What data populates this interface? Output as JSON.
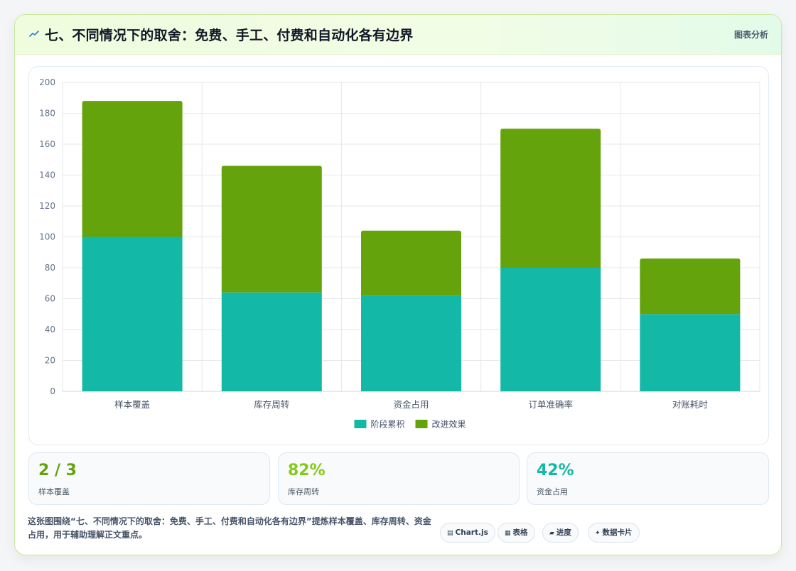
{
  "header": {
    "icon": "chart-line-icon",
    "title": "七、不同情况下的取舍：免费、手工、付费和自动化各有边界",
    "tag": "图表分析"
  },
  "chart_data": {
    "type": "bar",
    "stacked": true,
    "categories": [
      "样本覆盖",
      "库存周转",
      "资金占用",
      "订单准确率",
      "对账耗时"
    ],
    "series": [
      {
        "name": "阶段累积",
        "color": "#14b8a6",
        "values": [
          100,
          64,
          62,
          80,
          50
        ]
      },
      {
        "name": "改进效果",
        "color": "#65a30d",
        "values": [
          88,
          82,
          42,
          90,
          36
        ]
      }
    ],
    "ylim": [
      0,
      200
    ],
    "yticks": [
      0,
      20,
      40,
      60,
      80,
      100,
      120,
      140,
      160,
      180,
      200
    ],
    "grid": true,
    "legend": "bottom"
  },
  "stats": [
    {
      "value": "2 / 3",
      "label": "样本覆盖",
      "color": "#65a30d"
    },
    {
      "value": "82%",
      "label": "库存周转",
      "color": "#84cc16"
    },
    {
      "value": "42%",
      "label": "资金占用",
      "color": "#14b8a6"
    }
  ],
  "footer": {
    "text": "这张图围绕“七、不同情况下的取舍：免费、手工、付费和自动化各有边界”提炼样本覆盖、库存周转、资金占用，用于辅助理解正文重点。",
    "pills": [
      {
        "icon": "table-icon",
        "label": "Chart.js"
      },
      {
        "icon": "grid-icon",
        "label": "表格"
      },
      {
        "icon": "progress-icon",
        "label": "进度"
      },
      {
        "icon": "sparkle-icon",
        "label": "数据卡片"
      }
    ]
  }
}
